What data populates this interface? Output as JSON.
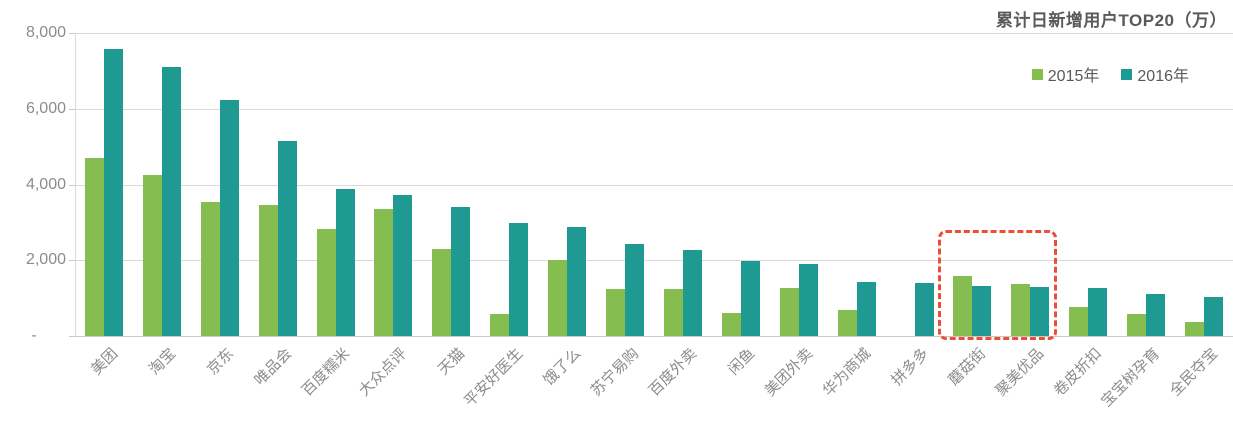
{
  "chart_data": {
    "type": "bar",
    "title": "累计日新增用户TOP20（万）",
    "categories": [
      "美团",
      "淘宝",
      "京东",
      "唯品会",
      "百度糯米",
      "大众点评",
      "天猫",
      "平安好医生",
      "饿了么",
      "苏宁易购",
      "百度外卖",
      "闲鱼",
      "美团外卖",
      "华为商城",
      "拼多多",
      "蘑菇街",
      "聚美优品",
      "卷皮折扣",
      "宝宝树孕育",
      "全民夺宝"
    ],
    "series": [
      {
        "name": "2015年",
        "color": "#85bd51",
        "values": [
          4700,
          4260,
          3550,
          3460,
          2830,
          3360,
          2310,
          590,
          2020,
          1230,
          1250,
          620,
          1270,
          680,
          0,
          1580,
          1380,
          760,
          580,
          380
        ]
      },
      {
        "name": "2016年",
        "color": "#1f9a93",
        "values": [
          7590,
          7100,
          6220,
          5150,
          3890,
          3730,
          3400,
          2980,
          2870,
          2430,
          2270,
          1970,
          1890,
          1420,
          1390,
          1320,
          1290,
          1280,
          1110,
          1040
        ]
      }
    ],
    "xlabel": "",
    "ylabel": "",
    "ylim": [
      0,
      8000
    ],
    "yticks": [
      {
        "value": 0,
        "label": "-"
      },
      {
        "value": 2000,
        "label": "2,000"
      },
      {
        "value": 4000,
        "label": "4,000"
      },
      {
        "value": 6000,
        "label": "6,000"
      },
      {
        "value": 8000,
        "label": "8,000"
      }
    ],
    "grid": true,
    "legend_position": "top-right",
    "annotation": {
      "type": "dashed-box",
      "color": "#ec4e3a",
      "categories": [
        "蘑菇街",
        "聚美优品"
      ],
      "y_top_value": 2800
    }
  }
}
